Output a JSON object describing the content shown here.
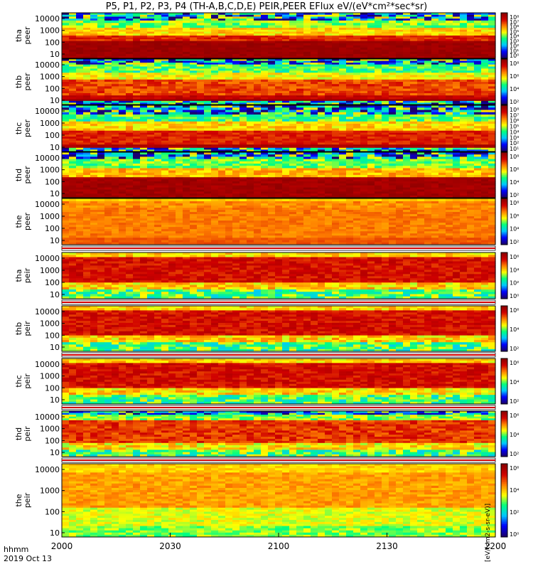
{
  "title": "P5, P1, P2, P3, P4 (TH-A,B,C,D,E) PEIR,PEER EFlux eV/(eV*cm²*sec*sr)",
  "footer": {
    "time_format": "hhmm",
    "date": "2019 Oct 13"
  },
  "colorbar_label": "[eV/(cm2-s-sr-eV)]",
  "chart_data": {
    "type": "heatmap",
    "x_axis": {
      "ticks": [
        "2000",
        "2030",
        "2100",
        "2130",
        "2200"
      ],
      "range": [
        "2000",
        "2200"
      ]
    },
    "y_axis": {
      "scale": "log",
      "ticks": [
        "10",
        "100",
        "1000",
        "10000"
      ]
    },
    "colorscale": [
      "#1a006e",
      "#0000ff",
      "#00c8ff",
      "#00ff80",
      "#ffff00",
      "#ff8000",
      "#d00000",
      "#8b0000"
    ],
    "panels": [
      {
        "label": "tha\npeer",
        "cbar_ticks": [
          "10⁸",
          "10⁷",
          "10⁶",
          "10⁵",
          "10⁴",
          "10³",
          "10²",
          "10¹",
          "10⁰"
        ],
        "profile": "peer_a"
      },
      {
        "label": "thb\npeer",
        "cbar_ticks": [
          "10⁸",
          "10⁶",
          "10⁴",
          "10²"
        ],
        "profile": "peer_b"
      },
      {
        "label": "thc\npeer",
        "cbar_ticks": [
          "10⁸",
          "10⁷",
          "10⁶",
          "10⁵",
          "10⁴",
          "10³",
          "10²",
          "10¹"
        ],
        "profile": "peer_c"
      },
      {
        "label": "thd\npeer",
        "cbar_ticks": [
          "10⁸",
          "10⁶",
          "10⁴",
          "10²"
        ],
        "profile": "peer_d"
      },
      {
        "label": "the\npeer",
        "cbar_ticks": [
          "10⁸",
          "10⁶",
          "10⁴",
          "10²"
        ],
        "profile": "peer_e"
      },
      {
        "label": "tha\npeir",
        "cbar_ticks": [
          "10⁶",
          "10⁴",
          "10²",
          "10⁰"
        ],
        "profile": "peir"
      },
      {
        "label": "thb\npeir",
        "cbar_ticks": [
          "10⁶",
          "10⁴",
          "10²"
        ],
        "profile": "peir"
      },
      {
        "label": "thc\npeir",
        "cbar_ticks": [
          "10⁶",
          "10⁴",
          "10²"
        ],
        "profile": "peir"
      },
      {
        "label": "thd\npeir",
        "cbar_ticks": [
          "10⁶",
          "10⁴",
          "10²"
        ],
        "profile": "peir_d"
      },
      {
        "label": "the\npeir",
        "cbar_ticks": [
          "10⁶",
          "10⁴",
          "10²",
          "10⁰"
        ],
        "profile": "peir_e"
      }
    ]
  }
}
